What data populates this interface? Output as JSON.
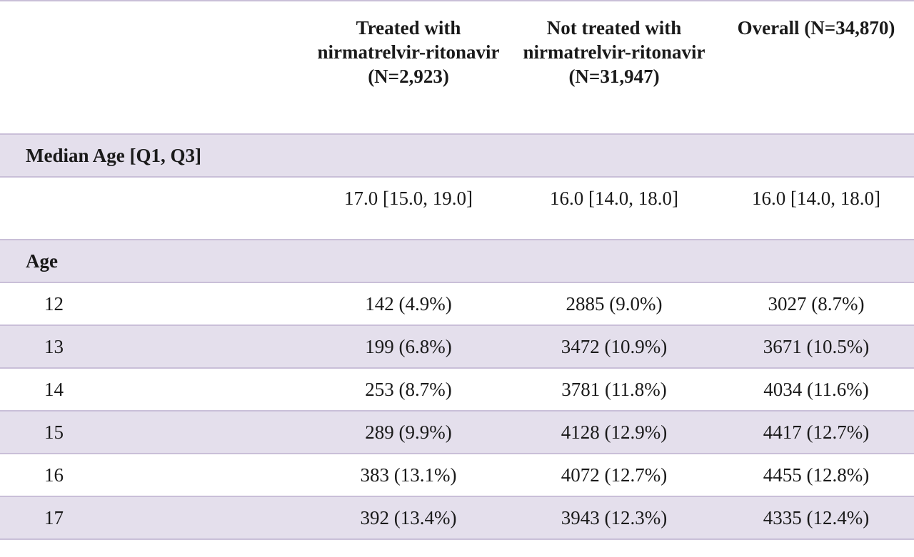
{
  "header": {
    "col1": "Treated with nirmatrelvir-ritonavir (N=2,923)",
    "col2": "Not treated with nirmatrelvir-ritonavir (N=31,947)",
    "col3": "Overall (N=34,870)"
  },
  "sections": {
    "median_age": "Median Age [Q1, Q3]",
    "age": "Age"
  },
  "median_row": {
    "treated": "17.0 [15.0, 19.0]",
    "not_treated": "16.0 [14.0, 18.0]",
    "overall": "16.0 [14.0, 18.0]"
  },
  "age_rows": [
    {
      "age": "12",
      "treated": "142 (4.9%)",
      "not_treated": "2885 (9.0%)",
      "overall": "3027 (8.7%)"
    },
    {
      "age": "13",
      "treated": "199 (6.8%)",
      "not_treated": "3472 (10.9%)",
      "overall": "3671 (10.5%)"
    },
    {
      "age": "14",
      "treated": "253 (8.7%)",
      "not_treated": "3781 (11.8%)",
      "overall": "4034 (11.6%)"
    },
    {
      "age": "15",
      "treated": "289 (9.9%)",
      "not_treated": "4128 (12.9%)",
      "overall": "4417 (12.7%)"
    },
    {
      "age": "16",
      "treated": "383 (13.1%)",
      "not_treated": "4072 (12.7%)",
      "overall": "4455 (12.8%)"
    },
    {
      "age": "17",
      "treated": "392 (13.4%)",
      "not_treated": "3943 (12.3%)",
      "overall": "4335 (12.4%)"
    }
  ],
  "colors": {
    "row_shade": "#e4dfec",
    "rule": "#c9bfd8"
  }
}
